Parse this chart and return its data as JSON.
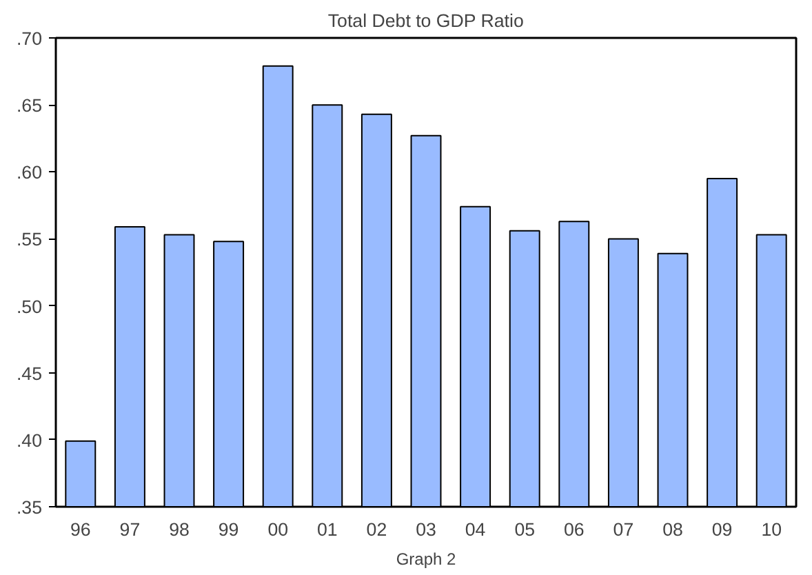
{
  "chart_data": {
    "type": "bar",
    "title": "Total Debt to GDP Ratio",
    "categories": [
      "96",
      "97",
      "98",
      "99",
      "00",
      "01",
      "02",
      "03",
      "04",
      "05",
      "06",
      "07",
      "08",
      "09",
      "10"
    ],
    "values": [
      0.399,
      0.559,
      0.553,
      0.548,
      0.679,
      0.65,
      0.643,
      0.627,
      0.574,
      0.556,
      0.563,
      0.55,
      0.539,
      0.595,
      0.553
    ],
    "color": "#99bbff",
    "ylim": [
      0.35,
      0.7
    ],
    "yticks": [
      {
        "value": 0.35,
        "label": ".35"
      },
      {
        "value": 0.4,
        "label": ".40"
      },
      {
        "value": 0.45,
        "label": ".45"
      },
      {
        "value": 0.5,
        "label": ".50"
      },
      {
        "value": 0.55,
        "label": ".55"
      },
      {
        "value": 0.6,
        "label": ".60"
      },
      {
        "value": 0.65,
        "label": ".65"
      },
      {
        "value": 0.7,
        "label": ".70"
      }
    ],
    "grid": false,
    "annotations": [
      "Graph 2"
    ]
  }
}
